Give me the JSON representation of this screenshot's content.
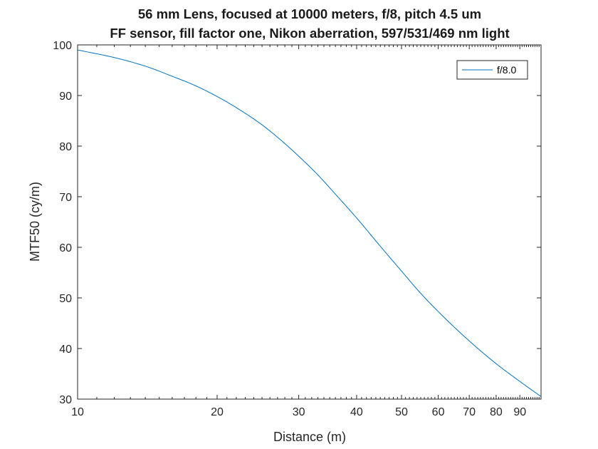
{
  "chart_data": {
    "type": "line",
    "title": [
      "56 mm Lens, focused at 10000 meters, f/8, pitch 4.5 um",
      "FF sensor, fill factor one, Nikon aberration, 597/531/469 nm light"
    ],
    "xlabel": "Distance (m)",
    "ylabel": "MTF50 (cy/m)",
    "xscale": "log",
    "xlim": [
      10,
      100
    ],
    "ylim": [
      30,
      100
    ],
    "xticks": [
      10,
      20,
      30,
      40,
      50,
      60,
      70,
      80,
      90
    ],
    "xtick_labels": [
      "10",
      "20",
      "30",
      "40",
      "50",
      "60",
      "70",
      "80",
      "90"
    ],
    "yticks": [
      30,
      40,
      50,
      60,
      70,
      80,
      90,
      100
    ],
    "ytick_labels": [
      "30",
      "40",
      "50",
      "60",
      "70",
      "80",
      "90",
      "100"
    ],
    "grid": false,
    "legend": {
      "placement": "top-right",
      "entries": [
        "f/8.0"
      ]
    },
    "series": [
      {
        "name": "f/8.0",
        "color": "#0072BD",
        "x": [
          10,
          12,
          14,
          16,
          18,
          20,
          22,
          25,
          28,
          30,
          33,
          36,
          40,
          45,
          50,
          55,
          60,
          70,
          80,
          90,
          100
        ],
        "y": [
          99.0,
          97.5,
          95.8,
          93.8,
          91.9,
          89.8,
          87.6,
          84.2,
          80.5,
          78.0,
          74.3,
          70.5,
          65.8,
          60.2,
          55.3,
          50.9,
          47.3,
          41.5,
          37.0,
          33.5,
          30.5
        ]
      }
    ]
  }
}
